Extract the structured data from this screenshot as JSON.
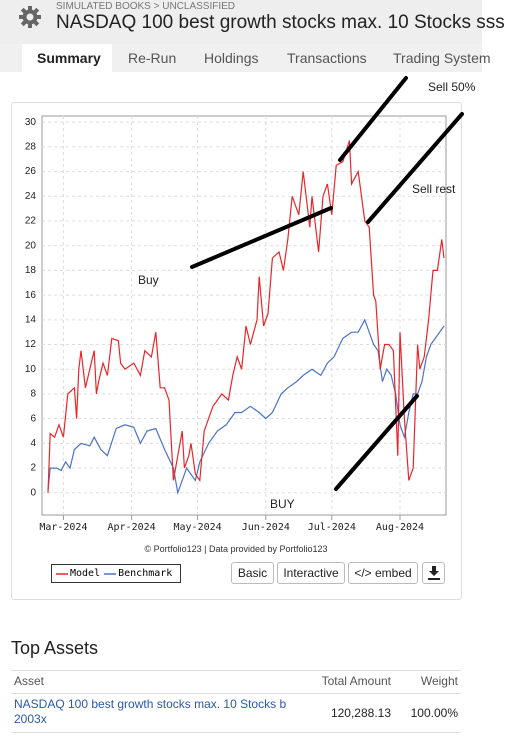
{
  "header": {
    "breadcrumb": "SIMULATED BOOKS > UNCLASSIFIED",
    "title": "NASDAQ 100 best growth stocks max. 10 Stocks sss"
  },
  "tabs": [
    "Summary",
    "Re-Run",
    "Holdings",
    "Transactions",
    "Trading System"
  ],
  "chart_data": {
    "type": "line",
    "xlim": [
      -7,
      173
    ],
    "xticks": [
      {
        "value": 0,
        "label": "Mar-2024"
      },
      {
        "value": 31,
        "label": "Apr-2024"
      },
      {
        "value": 61,
        "label": "May-2024"
      },
      {
        "value": 92,
        "label": "Jun-2024"
      },
      {
        "value": 122,
        "label": "Jul-2024"
      },
      {
        "value": 153,
        "label": "Aug-2024"
      }
    ],
    "ylim": [
      -1.8,
      30.5
    ],
    "yticks": [
      0,
      2,
      4,
      6,
      8,
      10,
      12,
      14,
      16,
      18,
      20,
      22,
      24,
      26,
      28,
      30
    ],
    "grid": true,
    "series": [
      {
        "name": "Model",
        "color": "#e8262a",
        "x": [
          -7,
          -6,
          -4,
          -2,
          0,
          2,
          5,
          6,
          7,
          8,
          10,
          12,
          14,
          15,
          16,
          18,
          20,
          22,
          25,
          26,
          28,
          32,
          35,
          37,
          40,
          42,
          44,
          46,
          48,
          50,
          52,
          54,
          55,
          57,
          58,
          60,
          62,
          64,
          66,
          68,
          70,
          72,
          75,
          77,
          79,
          81,
          83,
          85,
          88,
          89,
          91,
          93,
          95,
          98,
          100,
          102,
          104,
          107,
          109,
          112,
          113,
          116,
          118,
          120,
          122,
          124,
          127,
          130,
          131,
          134,
          137,
          139,
          141,
          142,
          144,
          146,
          148,
          150,
          152,
          153,
          155,
          157,
          159,
          161,
          162,
          164,
          166,
          168,
          170,
          172,
          173
        ],
        "values": [
          0,
          4.8,
          4.5,
          5.5,
          4.5,
          8,
          8.5,
          6,
          10,
          11.5,
          8.5,
          10,
          11.5,
          8,
          9,
          10.5,
          9.5,
          12.5,
          12.3,
          10.5,
          10,
          10.5,
          9.5,
          11.5,
          11,
          13,
          8.5,
          8.5,
          7.5,
          1,
          3,
          5,
          2,
          3,
          4,
          1.5,
          1,
          5,
          6,
          7,
          7.5,
          8,
          7.5,
          9.5,
          11,
          10,
          13.5,
          12,
          14,
          17.5,
          13.5,
          14.5,
          19,
          19.5,
          18,
          20.5,
          24,
          22.5,
          26,
          21.5,
          24,
          19.5,
          24,
          25,
          22.5,
          26.5,
          26.8,
          28.5,
          25,
          26,
          22,
          21.5,
          16,
          15.5,
          10,
          12,
          12,
          11.5,
          3,
          13,
          6,
          1,
          2,
          12,
          10,
          11,
          14,
          18,
          18,
          20.5,
          19
        ]
      },
      {
        "name": "Benchmark",
        "color": "#4a72c8",
        "x": [
          -7,
          -6,
          -3,
          -1,
          1,
          3,
          5,
          8,
          12,
          14,
          17,
          20,
          24,
          28,
          32,
          35,
          38,
          42,
          46,
          50,
          52,
          54,
          56,
          60,
          62,
          66,
          70,
          74,
          78,
          81,
          85,
          89,
          92,
          95,
          99,
          102,
          106,
          109,
          113,
          117,
          120,
          123,
          127,
          131,
          134,
          137,
          139,
          141,
          143,
          145,
          147,
          149,
          151,
          153,
          155,
          157,
          159,
          161,
          163,
          165,
          167,
          169,
          171,
          173
        ],
        "values": [
          0.2,
          2,
          2,
          1.8,
          2.5,
          2,
          3.5,
          4,
          3.8,
          4.5,
          3.5,
          3,
          5.2,
          5.5,
          5.3,
          4,
          5,
          5.2,
          3.5,
          2,
          0,
          1,
          2,
          1,
          2.5,
          4,
          5,
          5.5,
          6.5,
          6.5,
          7,
          6.5,
          6,
          6.5,
          8,
          8.5,
          9,
          9.5,
          10,
          9.5,
          10.5,
          11,
          12.5,
          13,
          13,
          14,
          13,
          12,
          11.5,
          9,
          10,
          9.5,
          8,
          5.5,
          4.5,
          6.5,
          8,
          8,
          9,
          11,
          12,
          12.5,
          13,
          13.5
        ]
      }
    ],
    "annotations": [
      "Sell 50%",
      "Sell rest",
      "Buy",
      "BUY"
    ],
    "credit": "© Portfolio123 | Data provided by Portfolio123"
  },
  "buttons": [
    "Basic",
    "Interactive",
    "</> embed"
  ],
  "top_assets": {
    "title": "Top Assets",
    "columns": [
      "Asset",
      "Total Amount",
      "Weight"
    ],
    "rows": [
      [
        "NASDAQ 100 best growth stocks max. 10 Stocks b 2003x",
        "120,288.13",
        "100.00%"
      ]
    ]
  }
}
